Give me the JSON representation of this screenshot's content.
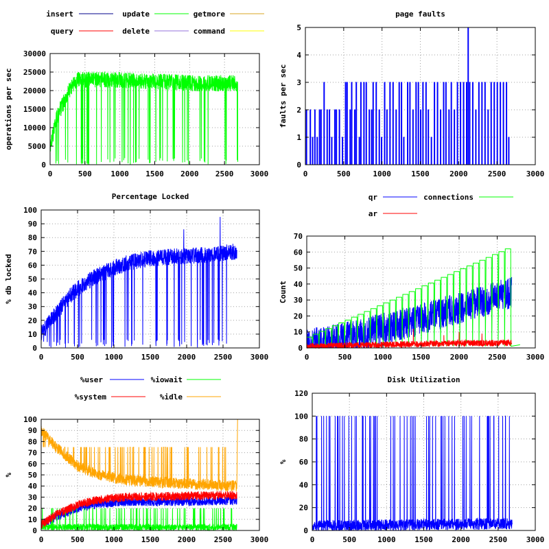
{
  "chart_data": [
    {
      "id": "ops",
      "type": "line",
      "title": "",
      "xlabel": "",
      "ylabel": "operations per sec",
      "xlim": [
        0,
        3000
      ],
      "ylim": [
        0,
        30000
      ],
      "xticks": [
        0,
        500,
        1000,
        1500,
        2000,
        2500,
        3000
      ],
      "yticks": [
        0,
        5000,
        10000,
        15000,
        20000,
        25000,
        30000
      ],
      "grid": true,
      "legend_position": "top",
      "series": [
        {
          "name": "insert",
          "color": "#00008b",
          "shape": "zero"
        },
        {
          "name": "update",
          "color": "#00ff00",
          "shape": "ramp",
          "x": [
            0,
            100,
            200,
            300,
            400,
            800,
            1500,
            2000,
            2500,
            2690
          ],
          "y": [
            5000,
            13000,
            17000,
            21000,
            23000,
            23000,
            22500,
            22000,
            22000,
            22000
          ],
          "noise": 2200,
          "dips": 40,
          "dip_floor": 0
        },
        {
          "name": "getmore",
          "color": "#daa520",
          "shape": "zero"
        },
        {
          "name": "query",
          "color": "#ff0000",
          "shape": "zero"
        },
        {
          "name": "delete",
          "color": "#9370db",
          "shape": "zero"
        },
        {
          "name": "command",
          "color": "#ffff00",
          "shape": "zero"
        }
      ]
    },
    {
      "id": "faults",
      "type": "line",
      "title": "page faults",
      "xlabel": "",
      "ylabel": "faults per sec",
      "xlim": [
        0,
        3000
      ],
      "ylim": [
        0,
        5
      ],
      "xticks": [
        0,
        500,
        1000,
        1500,
        2000,
        2500,
        3000
      ],
      "yticks": [
        0,
        1,
        2,
        3,
        4,
        5
      ],
      "grid": true,
      "legend_position": "none",
      "series": [
        {
          "name": "",
          "color": "#0000ff",
          "shape": "spikes",
          "x": [
            10,
            60,
            90,
            120,
            150,
            180,
            200,
            240,
            280,
            310,
            340,
            380,
            400,
            440,
            480,
            520,
            540,
            580,
            600,
            640,
            660,
            700,
            720,
            760,
            790,
            830,
            860,
            880,
            920,
            960,
            990,
            1030,
            1060,
            1100,
            1140,
            1180,
            1220,
            1250,
            1280,
            1330,
            1360,
            1400,
            1440,
            1470,
            1500,
            1530,
            1570,
            1600,
            1640,
            1680,
            1720,
            1760,
            1800,
            1830,
            1870,
            1900,
            1940,
            1980,
            2020,
            2060,
            2100,
            2120,
            2140,
            2180,
            2220,
            2260,
            2300,
            2340,
            2380,
            2420,
            2460,
            2500,
            2540,
            2580,
            2620,
            2650
          ],
          "y": [
            2,
            2,
            1,
            2,
            1,
            2,
            2,
            3,
            2,
            2,
            1,
            2,
            2,
            2,
            1,
            3,
            3,
            2,
            3,
            2,
            3,
            1,
            3,
            3,
            3,
            2,
            2,
            3,
            3,
            2,
            1,
            3,
            2,
            3,
            3,
            2,
            3,
            3,
            1,
            3,
            3,
            2,
            3,
            3,
            2,
            3,
            3,
            2,
            1,
            3,
            3,
            2,
            3,
            3,
            2,
            3,
            2,
            3,
            3,
            3,
            3,
            5,
            3,
            3,
            2,
            3,
            3,
            3,
            2,
            3,
            3,
            3,
            3,
            3,
            3,
            1
          ]
        }
      ]
    },
    {
      "id": "locked",
      "type": "line",
      "title": "Percentage Locked",
      "xlabel": "",
      "ylabel": "% db locked",
      "xlim": [
        0,
        3000
      ],
      "ylim": [
        0,
        100
      ],
      "xticks": [
        0,
        500,
        1000,
        1500,
        2000,
        2500,
        3000
      ],
      "yticks": [
        0,
        10,
        20,
        30,
        40,
        50,
        60,
        70,
        80,
        90,
        100
      ],
      "grid": true,
      "legend_position": "none",
      "series": [
        {
          "name": "",
          "color": "#0000ff",
          "shape": "ramp",
          "x": [
            0,
            200,
            400,
            600,
            800,
            1000,
            1200,
            1500,
            1800,
            2100,
            2400,
            2690
          ],
          "y": [
            10,
            25,
            38,
            47,
            53,
            58,
            62,
            65,
            66,
            67,
            68,
            70
          ],
          "noise": 6,
          "dips": 55,
          "dip_floor": 0,
          "peaks": [
            [
              1960,
              86
            ],
            [
              2460,
              95
            ]
          ]
        }
      ]
    },
    {
      "id": "count",
      "type": "line",
      "title": "",
      "xlabel": "",
      "ylabel": "Count",
      "xlim": [
        0,
        3000
      ],
      "ylim": [
        0,
        70
      ],
      "xticks": [
        0,
        500,
        1000,
        1500,
        2000,
        2500,
        3000
      ],
      "yticks": [
        0,
        10,
        20,
        30,
        40,
        50,
        60,
        70
      ],
      "grid": true,
      "legend_position": "top",
      "series": [
        {
          "name": "qr",
          "color": "#0000ff",
          "shape": "ramp",
          "x": [
            0,
            500,
            1000,
            1500,
            2000,
            2500,
            2690
          ],
          "y": [
            2,
            6,
            12,
            18,
            25,
            32,
            35
          ],
          "noise": 10,
          "dips": 0,
          "dip_floor": 0
        },
        {
          "name": "connections",
          "color": "#00ff00",
          "shape": "steps",
          "x": [
            0,
            2690,
            2800
          ],
          "y": [
            5,
            62,
            2
          ],
          "steps": 32
        },
        {
          "name": "ar",
          "color": "#ff0000",
          "shape": "ramp",
          "x": [
            0,
            1000,
            2000,
            2690
          ],
          "y": [
            1,
            2,
            3,
            3
          ],
          "noise": 2,
          "dips": 0,
          "dip_floor": 0,
          "peaks": [
            [
              1400,
              12
            ],
            [
              1800,
              8
            ],
            [
              2000,
              10
            ],
            [
              2300,
              9
            ]
          ]
        }
      ]
    },
    {
      "id": "cpu",
      "type": "line",
      "title": "",
      "xlabel": "",
      "ylabel": "%",
      "xlim": [
        0,
        3000
      ],
      "ylim": [
        0,
        100
      ],
      "xticks": [
        0,
        500,
        1000,
        1500,
        2000,
        2500,
        3000
      ],
      "yticks": [
        0,
        10,
        20,
        30,
        40,
        50,
        60,
        70,
        80,
        90,
        100
      ],
      "grid": true,
      "legend_position": "top",
      "series": [
        {
          "name": "%user",
          "color": "#0000ff",
          "shape": "ramp",
          "x": [
            0,
            200,
            500,
            800,
            1200,
            2000,
            2690
          ],
          "y": [
            5,
            12,
            20,
            24,
            26,
            26,
            27
          ],
          "noise": 4,
          "dips": 0,
          "dip_floor": 0
        },
        {
          "name": "%iowait",
          "color": "#00ff00",
          "shape": "ramp",
          "x": [
            0,
            2690
          ],
          "y": [
            3,
            3
          ],
          "noise": 3,
          "dips": -60,
          "dip_floor": 20
        },
        {
          "name": "%system",
          "color": "#ff0000",
          "shape": "ramp",
          "x": [
            0,
            200,
            500,
            800,
            1200,
            2000,
            2690
          ],
          "y": [
            5,
            14,
            23,
            28,
            30,
            31,
            32
          ],
          "noise": 4,
          "dips": 0,
          "dip_floor": 0
        },
        {
          "name": "%idle",
          "color": "#ffa500",
          "shape": "ramp",
          "x": [
            0,
            200,
            500,
            800,
            1200,
            2000,
            2690,
            2700,
            2800
          ],
          "y": [
            90,
            75,
            58,
            50,
            45,
            42,
            40,
            100,
            100
          ],
          "noise": 5,
          "dips": -50,
          "dip_floor": 75
        }
      ]
    },
    {
      "id": "disk",
      "type": "line",
      "title": "Disk Utilization",
      "xlabel": "",
      "ylabel": "%",
      "xlim": [
        0,
        3000
      ],
      "ylim": [
        0,
        120
      ],
      "xticks": [
        0,
        500,
        1000,
        1500,
        2000,
        2500,
        3000
      ],
      "yticks": [
        0,
        20,
        40,
        60,
        80,
        100,
        120
      ],
      "grid": true,
      "legend_position": "none",
      "series": [
        {
          "name": "",
          "color": "#0000ff",
          "shape": "ramp",
          "x": [
            0,
            2690
          ],
          "y": [
            4,
            6
          ],
          "noise": 5,
          "dips": -48,
          "dip_floor": 100
        }
      ]
    }
  ]
}
